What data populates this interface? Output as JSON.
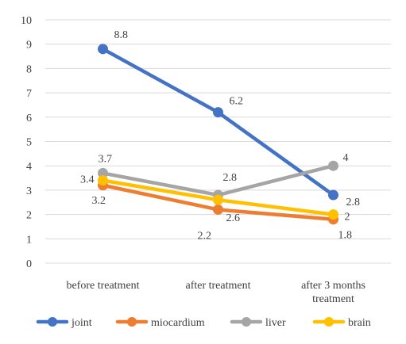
{
  "chart_data": {
    "type": "line",
    "title": "",
    "xlabel": "",
    "ylabel": "",
    "categories": [
      [
        "before treatment"
      ],
      [
        "after treatment"
      ],
      [
        "after 3 months",
        "treatment"
      ]
    ],
    "ylim": [
      0,
      10
    ],
    "yticks": [
      "0",
      "1",
      "2",
      "3",
      "4",
      "5",
      "6",
      "7",
      "8",
      "9",
      "10"
    ],
    "grid": true,
    "legend_position": "bottom",
    "series": [
      {
        "name": "joint",
        "color": "#4472C4",
        "values": [
          8.8,
          6.2,
          2.8
        ],
        "labels": [
          "8.8",
          "6.2",
          "2.8"
        ]
      },
      {
        "name": "miocardium",
        "color": "#ED7D31",
        "values": [
          3.2,
          2.2,
          1.8
        ],
        "labels": [
          "3.2",
          "2.2",
          "1.8"
        ]
      },
      {
        "name": "liver",
        "color": "#A5A5A5",
        "values": [
          3.7,
          2.8,
          4.0
        ],
        "labels": [
          "3.7",
          "2.8",
          "4"
        ]
      },
      {
        "name": "brain",
        "color": "#FFC000",
        "values": [
          3.4,
          2.6,
          2.0
        ],
        "labels": [
          "3.4",
          "2.6",
          "2"
        ]
      }
    ]
  }
}
